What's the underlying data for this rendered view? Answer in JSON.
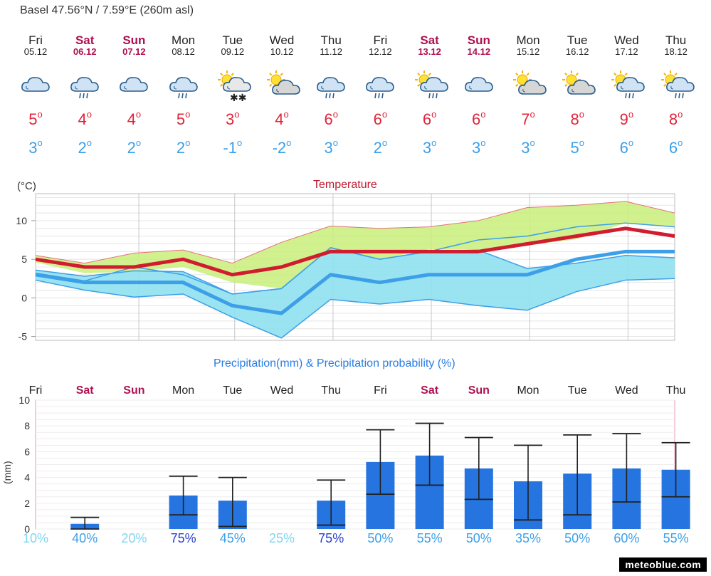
{
  "location": "Basel  47.56°N / 7.59°E (260m asl)",
  "days": [
    {
      "name": "Fri",
      "date": "05.12",
      "weekend": false,
      "icon": "cloudy-icon",
      "max": "5",
      "min": "3"
    },
    {
      "name": "Sat",
      "date": "06.12",
      "weekend": true,
      "icon": "rain-cloud-icon",
      "max": "4",
      "min": "2"
    },
    {
      "name": "Sun",
      "date": "07.12",
      "weekend": true,
      "icon": "cloudy-icon",
      "max": "4",
      "min": "2"
    },
    {
      "name": "Mon",
      "date": "08.12",
      "weekend": false,
      "icon": "rain-cloud-icon",
      "max": "5",
      "min": "2"
    },
    {
      "name": "Tue",
      "date": "09.12",
      "weekend": false,
      "icon": "sun-snow-icon",
      "max": "3",
      "min": "-1"
    },
    {
      "name": "Wed",
      "date": "10.12",
      "weekend": false,
      "icon": "sun-cloud-icon",
      "max": "4",
      "min": "-2"
    },
    {
      "name": "Thu",
      "date": "11.12",
      "weekend": false,
      "icon": "rain-cloud-icon",
      "max": "6",
      "min": "3"
    },
    {
      "name": "Fri",
      "date": "12.12",
      "weekend": false,
      "icon": "rain-cloud-icon",
      "max": "6",
      "min": "2"
    },
    {
      "name": "Sat",
      "date": "13.12",
      "weekend": true,
      "icon": "sun-rain-icon",
      "max": "6",
      "min": "3"
    },
    {
      "name": "Sun",
      "date": "14.12",
      "weekend": true,
      "icon": "cloudy-icon",
      "max": "6",
      "min": "3"
    },
    {
      "name": "Mon",
      "date": "15.12",
      "weekend": false,
      "icon": "sun-cloud-icon",
      "max": "7",
      "min": "3"
    },
    {
      "name": "Tue",
      "date": "16.12",
      "weekend": false,
      "icon": "sun-cloud-icon",
      "max": "8",
      "min": "5"
    },
    {
      "name": "Wed",
      "date": "17.12",
      "weekend": false,
      "icon": "sun-rain-icon",
      "max": "9",
      "min": "6"
    },
    {
      "name": "Thu",
      "date": "18.12",
      "weekend": false,
      "icon": "sun-rain-icon",
      "max": "8",
      "min": "6"
    }
  ],
  "temp_title": "Temperature",
  "temp_unit": "(°C)",
  "precip_title": "Precipitation(mm) & Precipitation probability (%)",
  "precip_unit": "(mm)",
  "credit": "meteoblue.com",
  "colors": {
    "max": "#e0253a",
    "min": "#3d9fe8",
    "weekend": "#b01050",
    "bar": "#2574e0",
    "green_band": "#c8ee7a",
    "blue_band": "#8fe0ef"
  },
  "chart_data": [
    {
      "type": "line",
      "title": "Temperature",
      "ylabel": "(°C)",
      "ylim": [
        -5.5,
        13.5
      ],
      "yticks": [
        -5,
        0,
        5,
        10
      ],
      "categories": [
        "Fri",
        "Sat",
        "Sun",
        "Mon",
        "Tue",
        "Wed",
        "Thu",
        "Fri",
        "Sat",
        "Sun",
        "Mon",
        "Tue",
        "Wed",
        "Thu"
      ],
      "series": [
        {
          "name": "max",
          "values": [
            5,
            4,
            4,
            5,
            3,
            4,
            6,
            6,
            6,
            6,
            7,
            8,
            9,
            8
          ]
        },
        {
          "name": "min",
          "values": [
            3,
            2,
            2,
            2,
            -1,
            -2,
            3,
            2,
            3,
            3,
            3,
            5,
            6,
            6
          ]
        },
        {
          "name": "max_range_upper",
          "values": [
            5.5,
            4.5,
            5.8,
            6.2,
            4.5,
            7.2,
            9.3,
            9,
            9.2,
            10,
            11.7,
            12,
            12.5,
            11
          ]
        },
        {
          "name": "max_range_lower",
          "values": [
            4.6,
            3.2,
            3.4,
            4,
            2,
            1.2,
            6.3,
            5,
            6.3,
            6.3,
            6.8,
            7.6,
            9.7,
            9.3
          ]
        },
        {
          "name": "min_range_upper",
          "values": [
            3.6,
            2.8,
            3.5,
            3.4,
            0.5,
            1.2,
            6.5,
            5,
            6,
            6.2,
            3.8,
            4.5,
            5.5,
            5.2
          ]
        },
        {
          "name": "min_range_lower",
          "values": [
            2.3,
            1,
            0.1,
            0.5,
            -2.5,
            -5.2,
            -0.2,
            -0.8,
            -0.2,
            -1,
            -1.6,
            0.8,
            2.3,
            2.5
          ]
        },
        {
          "name": "min_upper_line",
          "values": [
            3.2,
            2.2,
            4,
            3,
            0.5,
            1.2,
            6.5,
            5,
            6,
            7.5,
            8,
            9.2,
            9.7,
            9.2
          ]
        }
      ]
    },
    {
      "type": "bar",
      "title": "Precipitation(mm) & Precipitation probability (%)",
      "ylabel": "(mm)",
      "ylim": [
        0,
        10
      ],
      "yticks": [
        0,
        2,
        4,
        6,
        8,
        10
      ],
      "categories": [
        "Fri",
        "Sat",
        "Sun",
        "Mon",
        "Tue",
        "Wed",
        "Thu",
        "Fri",
        "Sat",
        "Sun",
        "Mon",
        "Tue",
        "Wed",
        "Thu"
      ],
      "values": [
        0,
        0.4,
        0,
        2.6,
        2.2,
        0,
        2.2,
        5.2,
        5.7,
        4.7,
        3.7,
        4.3,
        4.7,
        4.6
      ],
      "range_low": [
        null,
        0,
        null,
        1.1,
        0.2,
        null,
        0.3,
        2.7,
        3.4,
        2.3,
        0.7,
        1.1,
        2.1,
        2.5
      ],
      "range_high": [
        null,
        0.9,
        null,
        4.1,
        4,
        null,
        3.8,
        7.7,
        8.2,
        7.1,
        6.5,
        7.3,
        7.4,
        6.7
      ],
      "probability": [
        "10%",
        "40%",
        "20%",
        "75%",
        "45%",
        "25%",
        "75%",
        "50%",
        "55%",
        "50%",
        "35%",
        "50%",
        "60%",
        "55%"
      ],
      "prob_colors": [
        "#7fd7ef",
        "#3d9fe8",
        "#7fd7ef",
        "#2a3fd0",
        "#3d9fe8",
        "#7fd7ef",
        "#2a3fd0",
        "#3d9fe8",
        "#3d9fe8",
        "#3d9fe8",
        "#3d9fe8",
        "#3d9fe8",
        "#3d9fe8",
        "#3d9fe8"
      ]
    }
  ]
}
